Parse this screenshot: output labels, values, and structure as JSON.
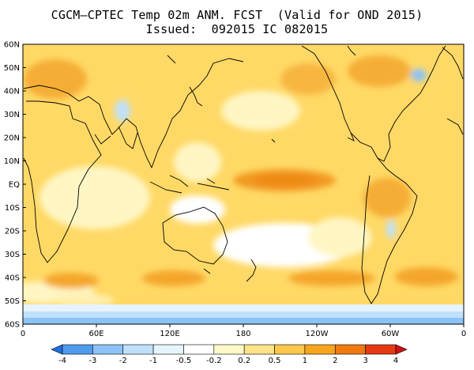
{
  "title": {
    "line1": "CGCM–CPTEC Temp 02m ANM. FCST  (Valid for OND 2015)",
    "line2": "Issued:  092015 IC 082015"
  },
  "map": {
    "lat_labels": [
      "60N",
      "50N",
      "40N",
      "30N",
      "20N",
      "10N",
      "EQ",
      "10S",
      "20S",
      "30S",
      "40S",
      "50S",
      "60S"
    ],
    "lon_labels": [
      "0",
      "60E",
      "120E",
      "180",
      "120W",
      "60W",
      "0"
    ]
  },
  "legend": {
    "labels": [
      "-4",
      "-3",
      "-2",
      "-1",
      "-0.5",
      "-0.2",
      "0.2",
      "0.5",
      "1",
      "2",
      "3",
      "4"
    ],
    "colors": [
      "#1e6fe0",
      "#4f9bee",
      "#8cc2f6",
      "#bfe0fb",
      "#e6f4fd",
      "#ffffff",
      "#fff8c8",
      "#ffe28a",
      "#ffc84a",
      "#f7a51c",
      "#f07a10",
      "#e43a14",
      "#d01010"
    ]
  },
  "palette": {
    "ocean_base": "#ffd966",
    "land_base": "#f9c44a",
    "coast": "#000000"
  }
}
